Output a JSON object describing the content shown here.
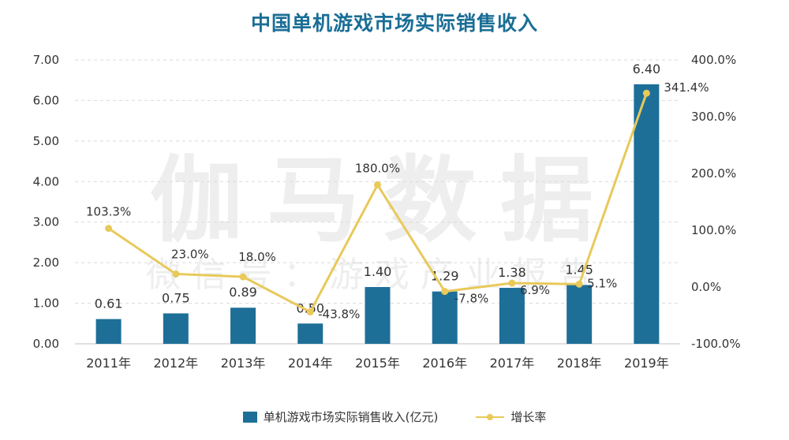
{
  "chart_data": {
    "type": "bar",
    "title": "中国单机游戏市场实际销售收入",
    "categories": [
      "2011年",
      "2012年",
      "2013年",
      "2014年",
      "2015年",
      "2016年",
      "2017年",
      "2018年",
      "2019年"
    ],
    "series": [
      {
        "name": "单机游戏市场实际销售收入(亿元)",
        "type": "bar",
        "axis": "left",
        "values": [
          0.61,
          0.75,
          0.89,
          0.5,
          1.4,
          1.29,
          1.38,
          1.45,
          6.4
        ],
        "labels": [
          "0.61",
          "0.75",
          "0.89",
          "0.50",
          "1.40",
          "1.29",
          "1.38",
          "1.45",
          "6.40"
        ]
      },
      {
        "name": "增长率",
        "type": "line",
        "axis": "right",
        "values": [
          103.3,
          23.0,
          18.0,
          -43.8,
          180.0,
          -7.8,
          6.9,
          5.1,
          341.4
        ],
        "labels": [
          "103.3%",
          "23.0%",
          "18.0%",
          "-43.8%",
          "180.0%",
          "-7.8%",
          "6.9%",
          "5.1%",
          "341.4%"
        ]
      }
    ],
    "y_left": {
      "ylim": [
        0,
        7
      ],
      "ticks": [
        "0.00",
        "1.00",
        "2.00",
        "3.00",
        "4.00",
        "5.00",
        "6.00",
        "7.00"
      ]
    },
    "y_right": {
      "ylim": [
        -100,
        400
      ],
      "ticks": [
        "-100.0%",
        "0.0%",
        "100.0%",
        "200.0%",
        "300.0%",
        "400.0%"
      ]
    },
    "grid": true,
    "legend_position": "bottom",
    "colors": {
      "bar": "#1e6f98",
      "line": "#e8c95a",
      "title": "#1a6e96"
    }
  },
  "watermark": {
    "main": "伽马数据",
    "sub": "微信号：游戏产业报告"
  }
}
